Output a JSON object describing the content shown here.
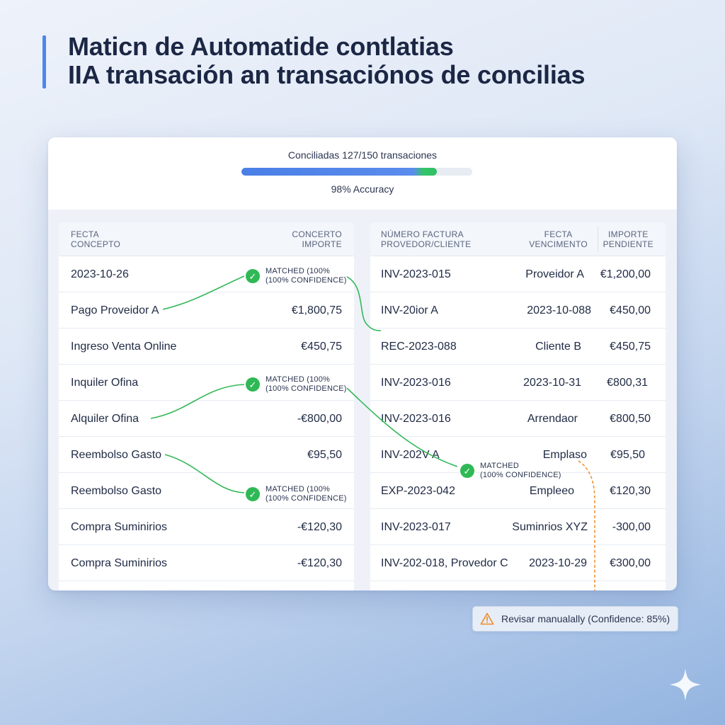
{
  "header": {
    "title_line1": "Maticn de Automatide contlatias",
    "title_line2": "IIA transación an transaciónos de concilias",
    "accent_color": "#4f86ea"
  },
  "progress": {
    "label": "Conciliadas 127/150 transaciones",
    "reconciled": 127,
    "total": 150,
    "accuracy_label": "98% Accuracy"
  },
  "left_table": {
    "headers": {
      "col1_line1": "FECTA",
      "col1_line2": "CONCEPTO",
      "col2_line1": "CONCERTO",
      "col2_line2": "IMPORTE"
    },
    "rows": [
      {
        "concept": "2023-10-26",
        "amount": ""
      },
      {
        "concept": "Pago Proveidor A",
        "amount": "€1,800,75"
      },
      {
        "concept": "Ingreso Venta Online",
        "amount": "€450,75"
      },
      {
        "concept": "Inquiler Ofina",
        "amount": ""
      },
      {
        "concept": "Alquiler Ofina",
        "amount": "-€800,00"
      },
      {
        "concept": "Reembolso Gasto",
        "amount": "€95,50"
      },
      {
        "concept": "Reembolso Gasto",
        "amount": ""
      },
      {
        "concept": "Compra Suminirios",
        "amount": "-€120,30"
      },
      {
        "concept": "Compra Suminirios",
        "amount": "-€120,30"
      }
    ]
  },
  "right_table": {
    "headers": {
      "col1_line1": "NÚMERO FACTURA",
      "col1_line2": "PROVEDOR/CLIENTE",
      "col2_line1": "FECTA",
      "col2_line2": "VENCIMENTO",
      "col3_line1": "IMPORTE",
      "col3_line2": "PENDIENTE"
    },
    "rows": [
      {
        "invoice": "INV-2023-015",
        "party": "Proveidor A",
        "amount": "€1,200,00"
      },
      {
        "invoice": "INV-20ior A",
        "party": "2023-10-088",
        "amount": "€450,00"
      },
      {
        "invoice": "REC-2023-088",
        "party": "Cliente B",
        "amount": "€450,75"
      },
      {
        "invoice": "INV-2023-016",
        "party": "2023-10-31",
        "amount": "€800,31"
      },
      {
        "invoice": "INV-2023-016",
        "party": "Arrendaor",
        "amount": "€800,50"
      },
      {
        "invoice": "INV-202V A",
        "party": "Emplaso",
        "amount": "€95,50"
      },
      {
        "invoice": "EXP-2023-042",
        "party": "Empleeo",
        "amount": "€120,30"
      },
      {
        "invoice": "INV-2023-017",
        "party": "Suminrios XYZ",
        "amount": "-300,00"
      },
      {
        "invoice": "INV-202-018, Provedor C",
        "party": "2023-10-29",
        "amount": "€300,00"
      }
    ]
  },
  "matches": {
    "m1": {
      "line1": "MATCHED (100%",
      "line2": "(100% CONFIDENCE)"
    },
    "m2": {
      "line1": "MATCHED (100%",
      "line2": "(100% CONFIDENCE)"
    },
    "m3": {
      "line1": "MATCHED (100%",
      "line2": "(100% CONFIDENCE)"
    },
    "m4": {
      "line1": "MATCHED",
      "line2": "(100% CONFIDENCE)"
    }
  },
  "warning": {
    "text": "Revisar manualally (Confidence: 85%)",
    "icon": "warning-triangle-icon",
    "color": "#f08a24"
  },
  "colors": {
    "match_green": "#2fb956",
    "progress_blue": "#4a7fe6",
    "warning_orange": "#f08a24"
  }
}
